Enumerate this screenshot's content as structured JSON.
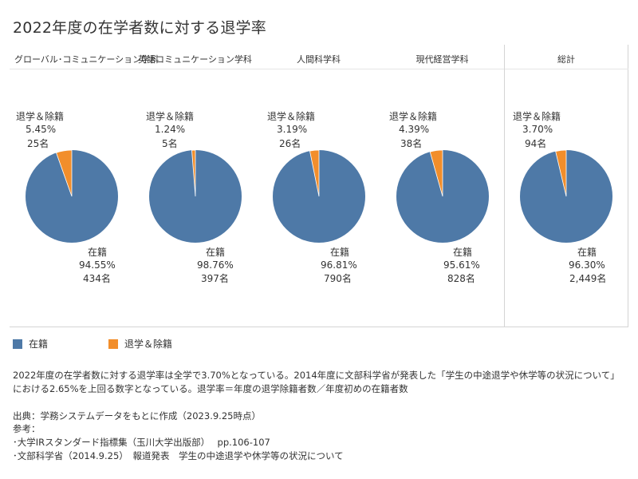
{
  "title": "2022年度の在学者数に対する退学率",
  "colors": {
    "enrolled": "#4e79a7",
    "withdrawn": "#f28e2b"
  },
  "legend": {
    "enrolled": "在籍",
    "withdrawn": "退学＆除籍"
  },
  "chart_data": {
    "type": "pie",
    "title": "2022年度の在学者数に対する退学率",
    "series_names": [
      "在籍",
      "退学＆除籍"
    ],
    "panels": [
      {
        "name": "グローバル･コミュニケーション学科",
        "withdrawn_label": "退学＆除籍",
        "withdrawn_pct": "5.45%",
        "withdrawn_count": "25名",
        "withdrawn_value": 25,
        "enrolled_label": "在籍",
        "enrolled_pct": "94.55%",
        "enrolled_count": "434名",
        "enrolled_value": 434
      },
      {
        "name": "英語コミュニケーション学科",
        "withdrawn_label": "退学＆除籍",
        "withdrawn_pct": "1.24%",
        "withdrawn_count": "5名",
        "withdrawn_value": 5,
        "enrolled_label": "在籍",
        "enrolled_pct": "98.76%",
        "enrolled_count": "397名",
        "enrolled_value": 397
      },
      {
        "name": "人間科学科",
        "withdrawn_label": "退学＆除籍",
        "withdrawn_pct": "3.19%",
        "withdrawn_count": "26名",
        "withdrawn_value": 26,
        "enrolled_label": "在籍",
        "enrolled_pct": "96.81%",
        "enrolled_count": "790名",
        "enrolled_value": 790
      },
      {
        "name": "現代経営学科",
        "withdrawn_label": "退学＆除籍",
        "withdrawn_pct": "4.39%",
        "withdrawn_count": "38名",
        "withdrawn_value": 38,
        "enrolled_label": "在籍",
        "enrolled_pct": "95.61%",
        "enrolled_count": "828名",
        "enrolled_value": 828
      },
      {
        "name": "総計",
        "withdrawn_label": "退学＆除籍",
        "withdrawn_pct": "3.70%",
        "withdrawn_count": "94名",
        "withdrawn_value": 94,
        "enrolled_label": "在籍",
        "enrolled_pct": "96.30%",
        "enrolled_count": "2,449名",
        "enrolled_value": 2449
      }
    ]
  },
  "note": "2022年度の在学者数に対する退学率は全学で3.70%となっている。2014年度に文部科学省が発表した「学生の中途退学や休学等の状況について」における2.65%を上回る数字となっている。退学率＝年度の退学除籍者数／年度初めの在籍者数",
  "source": {
    "line1": "出典：学務システムデータをもとに作成（2023.9.25時点）",
    "line2": "参考：",
    "line3": "･大学IRスタンダード指標集（玉川大学出版部）　 pp.106-107",
    "line4": "･文部科学省（2014.9.25）　報道発表　学生の中途退学や休学等の状況について"
  }
}
